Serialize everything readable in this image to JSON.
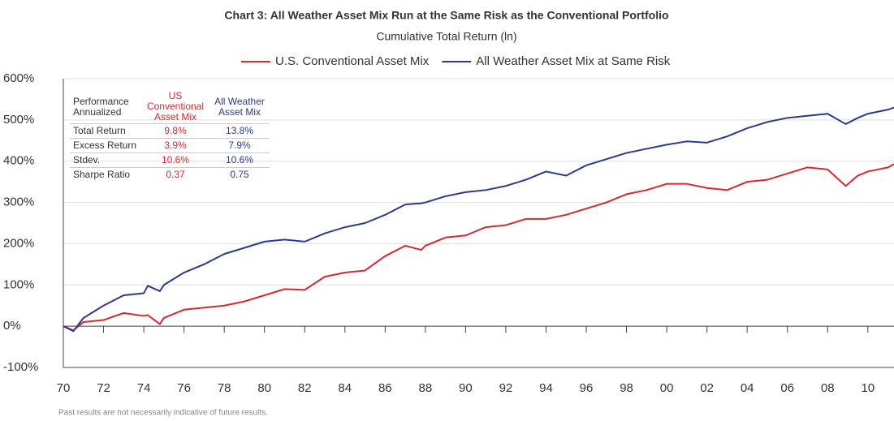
{
  "chart_data": {
    "type": "line",
    "title": "Chart 3: All Weather Asset Mix Run at the Same Risk as the Conventional Portfolio",
    "subtitle": "Cumulative Total Return (ln)",
    "footnote": "Past results are not necessarily indicative of future results.",
    "x": [
      1970,
      1970.5,
      1971,
      1972,
      1973,
      1974,
      1974.2,
      1974.8,
      1975,
      1976,
      1977,
      1978,
      1979,
      1980,
      1981,
      1982,
      1983,
      1984,
      1985,
      1986,
      1987,
      1987.8,
      1988,
      1989,
      1990,
      1991,
      1992,
      1993,
      1994,
      1995,
      1996,
      1997,
      1998,
      1999,
      2000,
      2001,
      2002,
      2003,
      2004,
      2005,
      2006,
      2007,
      2008,
      2008.9,
      2009.5,
      2010,
      2011,
      2011.3
    ],
    "series": [
      {
        "name": "U.S. Conventional Asset Mix",
        "color": "#d7282f",
        "values": [
          0,
          -10,
          10,
          15,
          32,
          25,
          27,
          5,
          20,
          40,
          45,
          50,
          60,
          75,
          90,
          88,
          120,
          130,
          135,
          170,
          195,
          185,
          195,
          215,
          220,
          240,
          245,
          260,
          260,
          270,
          285,
          300,
          320,
          330,
          345,
          345,
          335,
          330,
          350,
          355,
          370,
          385,
          380,
          340,
          365,
          375,
          385,
          393
        ]
      },
      {
        "name": "All Weather Asset Mix at Same Risk",
        "color": "#2b3a8f",
        "values": [
          0,
          -12,
          20,
          50,
          75,
          80,
          98,
          85,
          100,
          130,
          150,
          175,
          190,
          205,
          210,
          205,
          225,
          240,
          250,
          270,
          295,
          298,
          300,
          315,
          325,
          330,
          340,
          355,
          375,
          365,
          390,
          405,
          420,
          430,
          440,
          448,
          445,
          460,
          480,
          495,
          505,
          510,
          515,
          490,
          505,
          515,
          525,
          530
        ]
      }
    ],
    "xlim": [
      1970,
      2011.3
    ],
    "xticks": [
      {
        "value": 1970,
        "label": "70"
      },
      {
        "value": 1972,
        "label": "72"
      },
      {
        "value": 1974,
        "label": "74"
      },
      {
        "value": 1976,
        "label": "76"
      },
      {
        "value": 1978,
        "label": "78"
      },
      {
        "value": 1980,
        "label": "80"
      },
      {
        "value": 1982,
        "label": "82"
      },
      {
        "value": 1984,
        "label": "84"
      },
      {
        "value": 1986,
        "label": "86"
      },
      {
        "value": 1988,
        "label": "88"
      },
      {
        "value": 1990,
        "label": "90"
      },
      {
        "value": 1992,
        "label": "92"
      },
      {
        "value": 1994,
        "label": "94"
      },
      {
        "value": 1996,
        "label": "96"
      },
      {
        "value": 1998,
        "label": "98"
      },
      {
        "value": 2000,
        "label": "00"
      },
      {
        "value": 2002,
        "label": "02"
      },
      {
        "value": 2004,
        "label": "04"
      },
      {
        "value": 2006,
        "label": "06"
      },
      {
        "value": 2008,
        "label": "08"
      },
      {
        "value": 2010,
        "label": "10"
      }
    ],
    "ylim": [
      -100,
      600
    ],
    "yticks": [
      {
        "value": -100,
        "label": "-100%"
      },
      {
        "value": 0,
        "label": "0%"
      },
      {
        "value": 100,
        "label": "100%"
      },
      {
        "value": 200,
        "label": "200%"
      },
      {
        "value": 300,
        "label": "300%"
      },
      {
        "value": 400,
        "label": "400%"
      },
      {
        "value": 500,
        "label": "500%"
      },
      {
        "value": 600,
        "label": "600%"
      }
    ],
    "grid": true,
    "table": {
      "header": [
        "Performance Annualized",
        "US Conventional Asset Mix",
        "All Weather Asset Mix"
      ],
      "rows": [
        [
          "Total Return",
          "9.8%",
          "13.8%"
        ],
        [
          "Excess Return",
          "3.9%",
          "7.9%"
        ],
        [
          "Stdev.",
          "10.6%",
          "10.6%"
        ],
        [
          "Sharpe Ratio",
          "0.37",
          "0.75"
        ]
      ]
    }
  }
}
